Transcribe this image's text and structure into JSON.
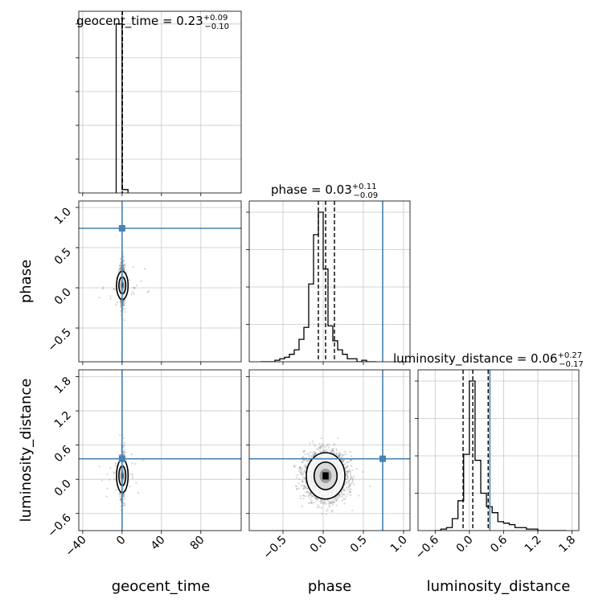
{
  "chart_data": {
    "type": "corner",
    "parameters": [
      "geocent_time",
      "phase",
      "luminosity_distance"
    ],
    "truths": {
      "geocent_time": 0,
      "phase": 0.74,
      "luminosity_distance": 0.36
    },
    "colors": {
      "truth": "#4682b4",
      "hist": "#000000",
      "grid": "#c8c8c8",
      "scatter": "#8a8a8a"
    },
    "grid": true,
    "ranges": {
      "geocent_time": [
        -44,
        121
      ],
      "phase": [
        -0.92,
        1.08
      ],
      "luminosity_distance": [
        -0.9,
        1.92
      ]
    },
    "ticks": {
      "geocent_time": {
        "values": [
          -40,
          0,
          40,
          80
        ],
        "labels": [
          "−40",
          "0",
          "40",
          "80"
        ]
      },
      "phase": {
        "values": [
          -0.5,
          0.0,
          0.5,
          1.0
        ],
        "labels": [
          "−0.5",
          "0.0",
          "0.5",
          "1.0"
        ]
      },
      "luminosity_distance": {
        "values": [
          -0.6,
          0.0,
          0.6,
          1.2,
          1.8
        ],
        "labels": [
          "−0.6",
          "0.0",
          "0.6",
          "1.2",
          "1.8"
        ]
      }
    },
    "titles": [
      {
        "param": "geocent_time",
        "text": "geocent_time = 0.23",
        "sup": "+0.09",
        "sub": "−0.10"
      },
      {
        "param": "phase",
        "text": "phase = 0.03",
        "sup": "+0.11",
        "sub": "−0.09"
      },
      {
        "param": "luminosity_distance",
        "text": "luminosity_distance = 0.06",
        "sup": "+0.27",
        "sub": "−0.17"
      }
    ],
    "quantiles": {
      "geocent_time": [
        0.13,
        0.23,
        0.32
      ],
      "phase": [
        -0.06,
        0.03,
        0.14
      ],
      "luminosity_distance": [
        -0.11,
        0.06,
        0.33
      ]
    },
    "histograms": {
      "geocent_time": {
        "edges": [
          -6,
          0,
          6
        ],
        "counts": [
          1.0,
          0.02
        ]
      },
      "phase": {
        "edges": [
          -0.78,
          -0.72,
          -0.66,
          -0.6,
          -0.54,
          -0.48,
          -0.42,
          -0.36,
          -0.3,
          -0.24,
          -0.18,
          -0.12,
          -0.06,
          0.0,
          0.06,
          0.12,
          0.18,
          0.24,
          0.3,
          0.36,
          0.42,
          0.48,
          0.54,
          0.6,
          0.66
        ],
        "counts": [
          0.0,
          0.0,
          0.0,
          0.01,
          0.02,
          0.03,
          0.05,
          0.08,
          0.15,
          0.23,
          0.52,
          0.85,
          1.0,
          0.62,
          0.24,
          0.14,
          0.08,
          0.05,
          0.02,
          0.02,
          0.0,
          0.01,
          0.0,
          0.0
        ]
      },
      "luminosity_distance": {
        "edges": [
          -0.6,
          -0.5,
          -0.4,
          -0.3,
          -0.2,
          -0.1,
          0.0,
          0.1,
          0.2,
          0.3,
          0.4,
          0.5,
          0.6,
          0.7,
          0.8,
          0.9,
          1.0,
          1.1,
          1.2,
          1.3,
          1.4,
          1.5,
          1.6,
          1.7
        ],
        "counts": [
          0.0,
          0.01,
          0.02,
          0.08,
          0.2,
          0.51,
          1.0,
          0.47,
          0.25,
          0.16,
          0.12,
          0.06,
          0.05,
          0.04,
          0.02,
          0.02,
          0.01,
          0.01,
          0.0,
          0.0,
          0.0,
          0.0,
          0.0
        ]
      }
    },
    "posterior_summary": {
      "geocent_time": {
        "mean": 0.23,
        "std": 1.2
      },
      "phase": {
        "mean": 0.03,
        "std": 0.13
      },
      "luminosity_distance": {
        "mean": 0.06,
        "std": 0.2
      }
    }
  }
}
